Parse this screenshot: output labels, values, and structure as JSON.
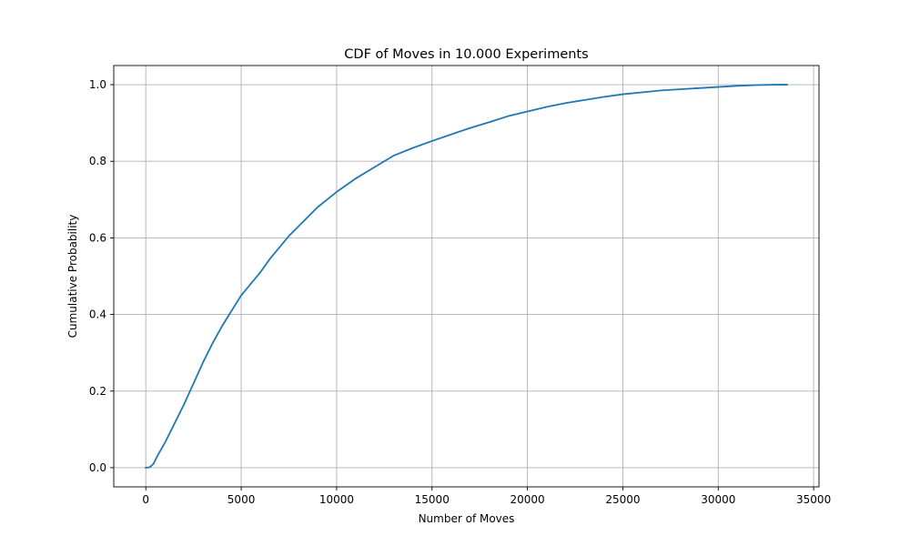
{
  "chart_data": {
    "type": "line",
    "title": "CDF of Moves in 10.000 Experiments",
    "xlabel": "Number of Moves",
    "ylabel": "Cumulative Probability",
    "xlim": [
      -1680,
      35280
    ],
    "ylim": [
      -0.05,
      1.05
    ],
    "xticks": [
      0,
      5000,
      10000,
      15000,
      20000,
      25000,
      30000,
      35000
    ],
    "xtick_labels": [
      "0",
      "5000",
      "10000",
      "15000",
      "20000",
      "25000",
      "30000",
      "35000"
    ],
    "yticks": [
      0.0,
      0.2,
      0.4,
      0.6,
      0.8,
      1.0
    ],
    "ytick_labels": [
      "0.0",
      "0.2",
      "0.4",
      "0.6",
      "0.8",
      "1.0"
    ],
    "grid": true,
    "legend": "none",
    "series": [
      {
        "color": "#1f77b4",
        "x": [
          0,
          200,
          400,
          600,
          1000,
          1500,
          2000,
          2500,
          3000,
          3500,
          4000,
          4500,
          5000,
          5500,
          6000,
          6500,
          7000,
          7500,
          8000,
          8500,
          9000,
          9500,
          10000,
          11000,
          12000,
          13000,
          14000,
          15000,
          16000,
          17000,
          18000,
          19000,
          20000,
          21000,
          22000,
          23000,
          24000,
          25000,
          26000,
          27000,
          28000,
          29000,
          30000,
          31000,
          32000,
          33000,
          33600
        ],
        "y": [
          0.0,
          0.001,
          0.01,
          0.03,
          0.065,
          0.115,
          0.165,
          0.22,
          0.275,
          0.325,
          0.37,
          0.41,
          0.45,
          0.48,
          0.51,
          0.545,
          0.575,
          0.605,
          0.63,
          0.655,
          0.68,
          0.7,
          0.72,
          0.755,
          0.785,
          0.815,
          0.835,
          0.853,
          0.87,
          0.887,
          0.902,
          0.918,
          0.93,
          0.942,
          0.952,
          0.96,
          0.968,
          0.975,
          0.98,
          0.985,
          0.988,
          0.991,
          0.994,
          0.997,
          0.999,
          1.0,
          1.0
        ]
      }
    ]
  }
}
